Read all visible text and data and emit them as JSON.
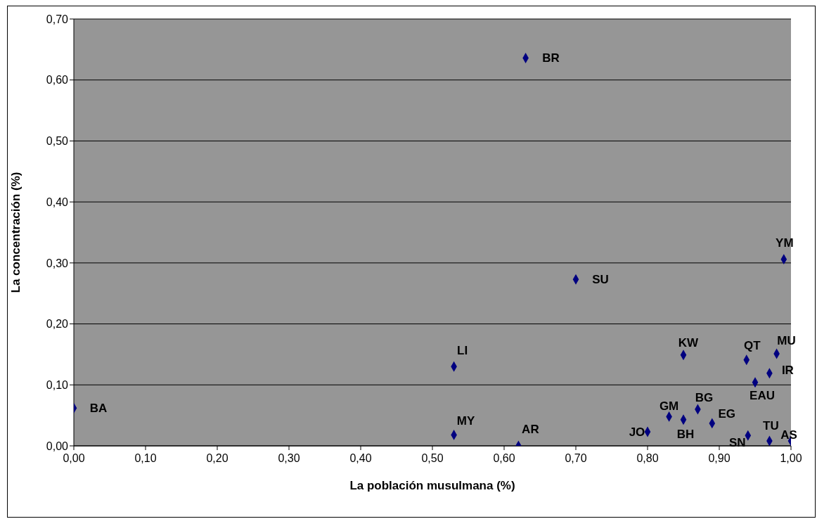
{
  "chart_data": {
    "type": "scatter",
    "xlabel": "La población musulmana (%)",
    "ylabel": "La concentración (%)",
    "series": [
      {
        "color": "#000080",
        "x": [
          0,
          0.53,
          0.53,
          0.62,
          0.63,
          0.7,
          0.8,
          0.83,
          0.85,
          0.85,
          0.87,
          0.89,
          0.938,
          0.95,
          0.94,
          0.97,
          0.97,
          0.98,
          0.99,
          1.0
        ],
        "values": [
          0.062,
          0.018,
          0.13,
          0.0,
          0.636,
          0.273,
          0.023,
          0.048,
          0.043,
          0.149,
          0.06,
          0.037,
          0.141,
          0.104,
          0.017,
          0.119,
          0.008,
          0.151,
          0.306,
          0.008
        ]
      }
    ],
    "annotations": [
      {
        "text": "BA",
        "x": 0,
        "y": 0.062
      },
      {
        "text": "MY",
        "x": 0.53,
        "y": 0.018
      },
      {
        "text": "LI",
        "x": 0.53,
        "y": 0.13
      },
      {
        "text": "AR",
        "x": 0.62,
        "y": 0.0
      },
      {
        "text": "BR",
        "x": 0.63,
        "y": 0.636
      },
      {
        "text": "SU",
        "x": 0.7,
        "y": 0.273
      },
      {
        "text": "JO",
        "x": 0.8,
        "y": 0.023
      },
      {
        "text": "GM",
        "x": 0.83,
        "y": 0.048
      },
      {
        "text": "BH",
        "x": 0.85,
        "y": 0.043
      },
      {
        "text": "KW",
        "x": 0.85,
        "y": 0.149
      },
      {
        "text": "BG",
        "x": 0.87,
        "y": 0.06
      },
      {
        "text": "EG",
        "x": 0.89,
        "y": 0.037
      },
      {
        "text": "QT",
        "x": 0.938,
        "y": 0.141
      },
      {
        "text": "EAU",
        "x": 0.95,
        "y": 0.104
      },
      {
        "text": "SN",
        "x": 0.94,
        "y": 0.017
      },
      {
        "text": "IR",
        "x": 0.97,
        "y": 0.119
      },
      {
        "text": "TU",
        "x": 0.97,
        "y": 0.008
      },
      {
        "text": "MU",
        "x": 0.98,
        "y": 0.151
      },
      {
        "text": "YM",
        "x": 0.99,
        "y": 0.306
      },
      {
        "text": "AS",
        "x": 1.0,
        "y": 0.008
      }
    ],
    "xlim": [
      0,
      1
    ],
    "ylim": [
      0,
      0.7
    ],
    "xticks": [
      {
        "value": 0,
        "label": "0,00"
      },
      {
        "value": 0.1,
        "label": "0,10"
      },
      {
        "value": 0.2,
        "label": "0,20"
      },
      {
        "value": 0.3,
        "label": "0,30"
      },
      {
        "value": 0.4,
        "label": "0,40"
      },
      {
        "value": 0.5,
        "label": "0,50"
      },
      {
        "value": 0.6,
        "label": "0,60"
      },
      {
        "value": 0.7,
        "label": "0,70"
      },
      {
        "value": 0.8,
        "label": "0,80"
      },
      {
        "value": 0.9,
        "label": "0,90"
      },
      {
        "value": 1,
        "label": "1,00"
      }
    ],
    "yticks": [
      {
        "value": 0,
        "label": "0,00"
      },
      {
        "value": 0.1,
        "label": "0,10"
      },
      {
        "value": 0.2,
        "label": "0,20"
      },
      {
        "value": 0.3,
        "label": "0,30"
      },
      {
        "value": 0.4,
        "label": "0,40"
      },
      {
        "value": 0.5,
        "label": "0,50"
      },
      {
        "value": 0.6,
        "label": "0,60"
      },
      {
        "value": 0.7,
        "label": "0,70"
      }
    ],
    "grid": "y",
    "legend": false,
    "marker": "diamond"
  }
}
